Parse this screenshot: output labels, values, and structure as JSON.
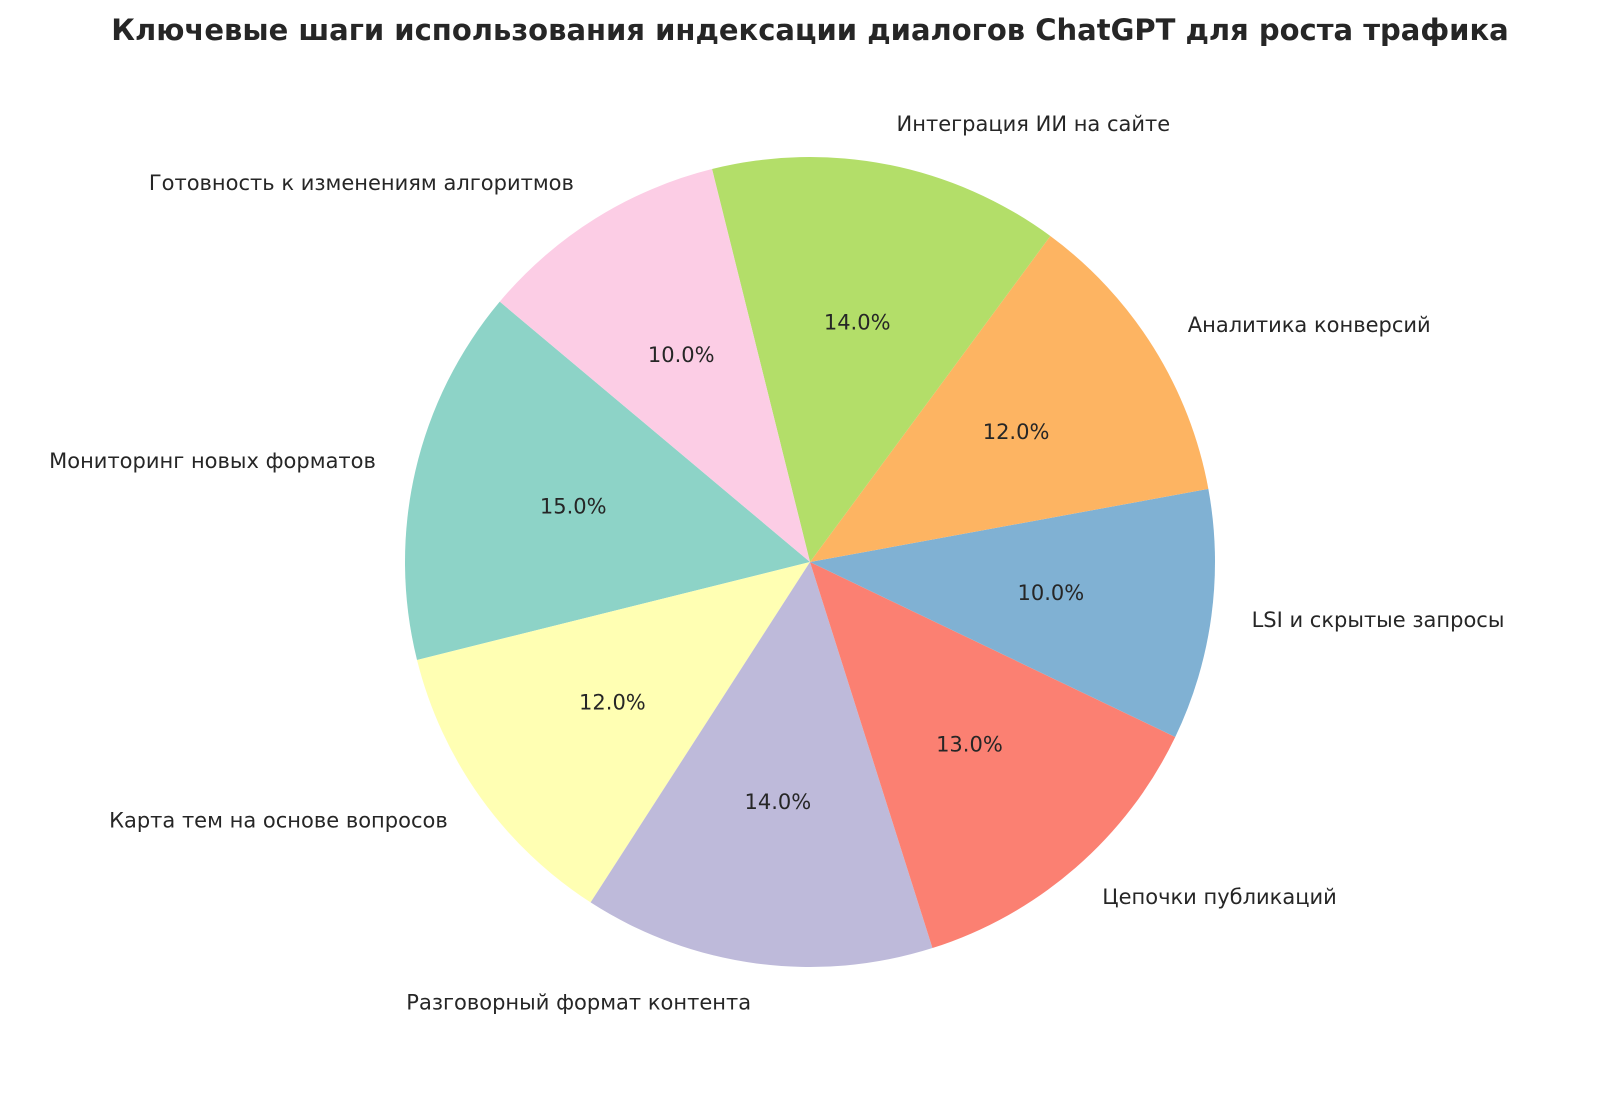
{
  "chart_data": {
    "type": "pie",
    "title": "Ключевые шаги использования индексации диалогов ChatGPT для роста трафика",
    "categories": [
      "Мониторинг новых форматов",
      "Карта тем на основе вопросов",
      "Разговорный формат контента",
      "Цепочки публикаций",
      "LSI и скрытые запросы",
      "Аналитика конверсий",
      "Интеграция ИИ на сайте",
      "Готовность к изменениям алгоритмов"
    ],
    "values": [
      15,
      12,
      14,
      13,
      10,
      12,
      14,
      10
    ],
    "value_labels": [
      "15.0%",
      "12.0%",
      "14.0%",
      "13.0%",
      "10.0%",
      "12.0%",
      "14.0%",
      "10.0%"
    ],
    "colors": [
      "#8dd3c7",
      "#ffffb3",
      "#bebada",
      "#fb8072",
      "#80b1d3",
      "#fdb462",
      "#b3de69",
      "#fccde5"
    ],
    "start_angle": 140
  }
}
